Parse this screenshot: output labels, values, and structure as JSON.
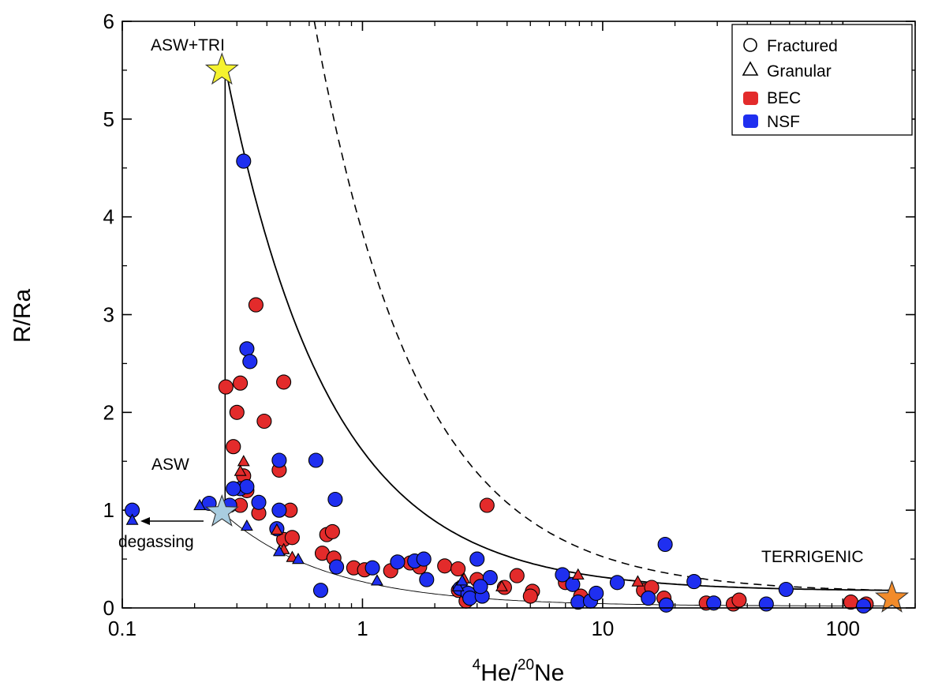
{
  "chart_data": {
    "type": "scatter",
    "title": "",
    "xlabel": {
      "iso1": "4",
      "el1": "He/",
      "iso2": "20",
      "el2": "Ne"
    },
    "ylabel": "R/Ra",
    "xscale": "log",
    "xlim": [
      0.1,
      200
    ],
    "ylim": [
      0,
      6
    ],
    "xticks": [
      {
        "value": 0.1,
        "label": "0.1"
      },
      {
        "value": 1,
        "label": "1"
      },
      {
        "value": 10,
        "label": "10"
      },
      {
        "value": 100,
        "label": "100"
      }
    ],
    "yticks": [
      {
        "value": 0,
        "label": "0"
      },
      {
        "value": 1,
        "label": "1"
      },
      {
        "value": 2,
        "label": "2"
      },
      {
        "value": 3,
        "label": "3"
      },
      {
        "value": 4,
        "label": "4"
      },
      {
        "value": 5,
        "label": "5"
      },
      {
        "value": 6,
        "label": "6"
      }
    ],
    "colors": {
      "BEC": "#e32b2b",
      "NSF": "#1f2ff0",
      "asw_tri_star": "#f5f22e",
      "asw_star": "#a9cde0",
      "terrigenic_star": "#f28b2a"
    },
    "legend": {
      "position": "top-right",
      "entries": [
        {
          "label": "Fractured",
          "symbol": "circle-open"
        },
        {
          "label": "Granular",
          "symbol": "triangle-open"
        },
        {
          "label": "BEC",
          "symbol": "square-red"
        },
        {
          "label": "NSF",
          "symbol": "square-blue"
        }
      ]
    },
    "annotations": {
      "asw_tri": "ASW+TRI",
      "asw": "ASW",
      "terrigenic": "TERRIGENIC",
      "degassing": "degassing"
    },
    "endmembers": [
      {
        "name": "ASW+TRI",
        "x": 0.26,
        "y": 5.5
      },
      {
        "name": "ASW",
        "x": 0.26,
        "y": 0.98
      },
      {
        "name": "TERRIGENIC",
        "x": 160,
        "y": 0.1
      }
    ],
    "curves": [
      {
        "name": "ASW+TRI to TERRIGENIC mixing",
        "style": "solid",
        "from": {
          "x": 0.27,
          "y": 5.5
        },
        "to": {
          "x": 160,
          "y": 0.18
        }
      },
      {
        "name": "Dashed mixing",
        "style": "dashed",
        "from": {
          "x": 0.63,
          "y": 6.0
        },
        "to": {
          "x": 160,
          "y": 0.18
        }
      },
      {
        "name": "ASW to TERRIGENIC mixing",
        "style": "thin",
        "from": {
          "x": 0.26,
          "y": 0.98
        },
        "to": {
          "x": 160,
          "y": 0.02
        }
      },
      {
        "name": "Tritium vertical",
        "style": "vertical",
        "x": 0.268,
        "y0": 0.98,
        "y1": 5.5
      }
    ],
    "series": [
      {
        "name": "BEC Fractured",
        "group": "BEC",
        "marker": "circle",
        "points": [
          [
            0.27,
            2.26
          ],
          [
            0.31,
            2.3
          ],
          [
            0.3,
            2.0
          ],
          [
            0.29,
            1.65
          ],
          [
            0.36,
            3.1
          ],
          [
            0.39,
            1.91
          ],
          [
            0.47,
            2.31
          ],
          [
            0.32,
            1.35
          ],
          [
            0.33,
            1.2
          ],
          [
            0.31,
            1.05
          ],
          [
            0.37,
            0.97
          ],
          [
            0.45,
            1.41
          ],
          [
            0.5,
            1.0
          ],
          [
            0.47,
            0.7
          ],
          [
            0.51,
            0.72
          ],
          [
            0.71,
            0.75
          ],
          [
            0.75,
            0.78
          ],
          [
            0.68,
            0.56
          ],
          [
            0.76,
            0.51
          ],
          [
            0.92,
            0.41
          ],
          [
            1.02,
            0.39
          ],
          [
            1.31,
            0.38
          ],
          [
            1.58,
            0.46
          ],
          [
            1.73,
            0.42
          ],
          [
            2.2,
            0.43
          ],
          [
            2.5,
            0.4
          ],
          [
            2.51,
            0.18
          ],
          [
            2.7,
            0.07
          ],
          [
            3.0,
            0.29
          ],
          [
            3.3,
            1.05
          ],
          [
            3.9,
            0.21
          ],
          [
            4.4,
            0.33
          ],
          [
            5.1,
            0.17
          ],
          [
            5.0,
            0.12
          ],
          [
            7.0,
            0.26
          ],
          [
            8.1,
            0.12
          ],
          [
            14.8,
            0.18
          ],
          [
            16.0,
            0.21
          ],
          [
            18.0,
            0.1
          ],
          [
            27.0,
            0.05
          ],
          [
            35.0,
            0.04
          ],
          [
            37.0,
            0.08
          ],
          [
            108,
            0.06
          ],
          [
            125,
            0.04
          ]
        ]
      },
      {
        "name": "NSF Fractured",
        "group": "NSF",
        "marker": "circle",
        "points": [
          [
            0.32,
            4.57
          ],
          [
            0.33,
            2.65
          ],
          [
            0.34,
            2.52
          ],
          [
            0.31,
            1.22
          ],
          [
            0.33,
            1.24
          ],
          [
            0.37,
            1.08
          ],
          [
            0.29,
            1.22
          ],
          [
            0.28,
            1.05
          ],
          [
            0.23,
            1.07
          ],
          [
            0.11,
            1.0
          ],
          [
            0.45,
            1.51
          ],
          [
            0.45,
            1.0
          ],
          [
            0.44,
            0.81
          ],
          [
            0.64,
            1.51
          ],
          [
            0.77,
            1.11
          ],
          [
            0.78,
            0.42
          ],
          [
            0.67,
            0.18
          ],
          [
            1.1,
            0.41
          ],
          [
            1.4,
            0.47
          ],
          [
            1.65,
            0.48
          ],
          [
            1.8,
            0.5
          ],
          [
            1.85,
            0.29
          ],
          [
            2.55,
            0.2
          ],
          [
            2.75,
            0.15
          ],
          [
            2.8,
            0.1
          ],
          [
            3.0,
            0.5
          ],
          [
            3.15,
            0.12
          ],
          [
            3.4,
            0.31
          ],
          [
            3.1,
            0.22
          ],
          [
            6.8,
            0.34
          ],
          [
            7.5,
            0.24
          ],
          [
            7.9,
            0.06
          ],
          [
            8.9,
            0.07
          ],
          [
            9.4,
            0.15
          ],
          [
            11.5,
            0.26
          ],
          [
            15.5,
            0.1
          ],
          [
            18.2,
            0.65
          ],
          [
            18.4,
            0.03
          ],
          [
            24.0,
            0.27
          ],
          [
            29.0,
            0.05
          ],
          [
            48.0,
            0.04
          ],
          [
            58.0,
            0.19
          ],
          [
            122,
            0.02
          ]
        ]
      },
      {
        "name": "BEC Granular",
        "group": "BEC",
        "marker": "triangle",
        "points": [
          [
            0.32,
            1.5
          ],
          [
            0.31,
            1.4
          ],
          [
            0.44,
            0.8
          ],
          [
            0.47,
            0.6
          ],
          [
            0.51,
            0.52
          ],
          [
            2.65,
            0.3
          ],
          [
            3.8,
            0.22
          ],
          [
            7.9,
            0.34
          ],
          [
            14.0,
            0.27
          ]
        ]
      },
      {
        "name": "NSF Granular",
        "group": "NSF",
        "marker": "triangle",
        "points": [
          [
            0.11,
            0.9
          ],
          [
            0.21,
            1.05
          ],
          [
            0.33,
            0.84
          ],
          [
            0.45,
            0.58
          ],
          [
            0.54,
            0.5
          ],
          [
            1.15,
            0.28
          ],
          [
            2.5,
            0.22
          ],
          [
            2.6,
            0.28
          ]
        ]
      }
    ]
  }
}
